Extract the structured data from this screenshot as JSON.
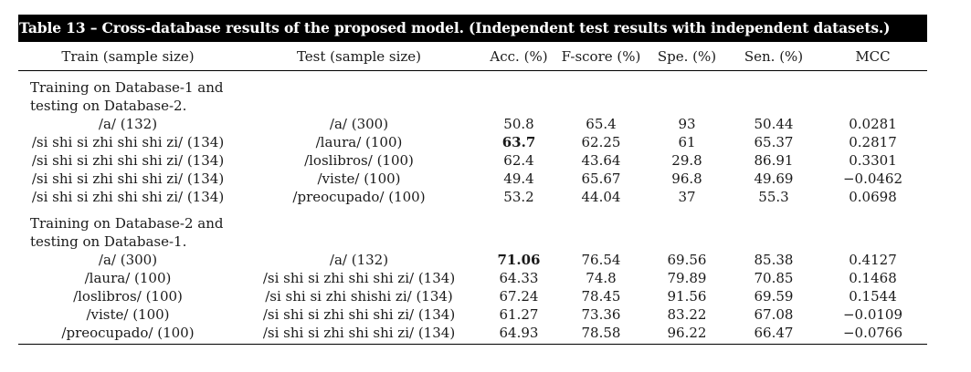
{
  "caption": "Table 13 – Cross-database results of the proposed model. (Independent test results with independent datasets.)",
  "headers": [
    "Train (sample size)",
    "Test (sample size)",
    "Acc. (%)",
    "F-score (%)",
    "Spe. (%)",
    "Sen. (%)",
    "MCC"
  ],
  "sections": [
    {
      "label": "Training on Database-1 and testing on Database-2.",
      "rows": [
        [
          "/a/ (132)",
          "/a/ (300)",
          "50.8",
          "65.4",
          "93",
          "50.44",
          "0.0281"
        ],
        [
          "/si shi si zhi shi shi zi/ (134)",
          "/laura/ (100)",
          "63.7",
          "62.25",
          "61",
          "65.37",
          "0.2817"
        ],
        [
          "/si shi si zhi shi shi zi/ (134)",
          "/loslibros/ (100)",
          "62.4",
          "43.64",
          "29.8",
          "86.91",
          "0.3301"
        ],
        [
          "/si shi si zhi shi shi zi/ (134)",
          "/viste/ (100)",
          "49.4",
          "65.67",
          "96.8",
          "49.69",
          "−0.0462"
        ],
        [
          "/si shi si zhi shi shi zi/ (134)",
          "/preocupado/ (100)",
          "53.2",
          "44.04",
          "37",
          "55.3",
          "0.0698"
        ]
      ]
    },
    {
      "label": "Training on Database-2 and testing on Database-1.",
      "rows": [
        [
          "/a/ (300)",
          "/a/ (132)",
          "71.06",
          "76.54",
          "69.56",
          "85.38",
          "0.4127"
        ],
        [
          "/laura/ (100)",
          "/si shi si zhi shi shi zi/ (134)",
          "64.33",
          "74.8",
          "79.89",
          "70.85",
          "0.1468"
        ],
        [
          "/loslibros/ (100)",
          "/si shi si zhi shishi zi/ (134)",
          "67.24",
          "78.45",
          "91.56",
          "69.59",
          "0.1544"
        ],
        [
          "/viste/ (100)",
          "/si shi si zhi shi shi zi/ (134)",
          "61.27",
          "73.36",
          "83.22",
          "67.08",
          "−0.0109"
        ],
        [
          "/preocupado/ (100)",
          "/si shi si zhi shi shi zi/ (134)",
          "64.93",
          "78.58",
          "96.22",
          "66.47",
          "−0.0766"
        ]
      ]
    }
  ]
}
